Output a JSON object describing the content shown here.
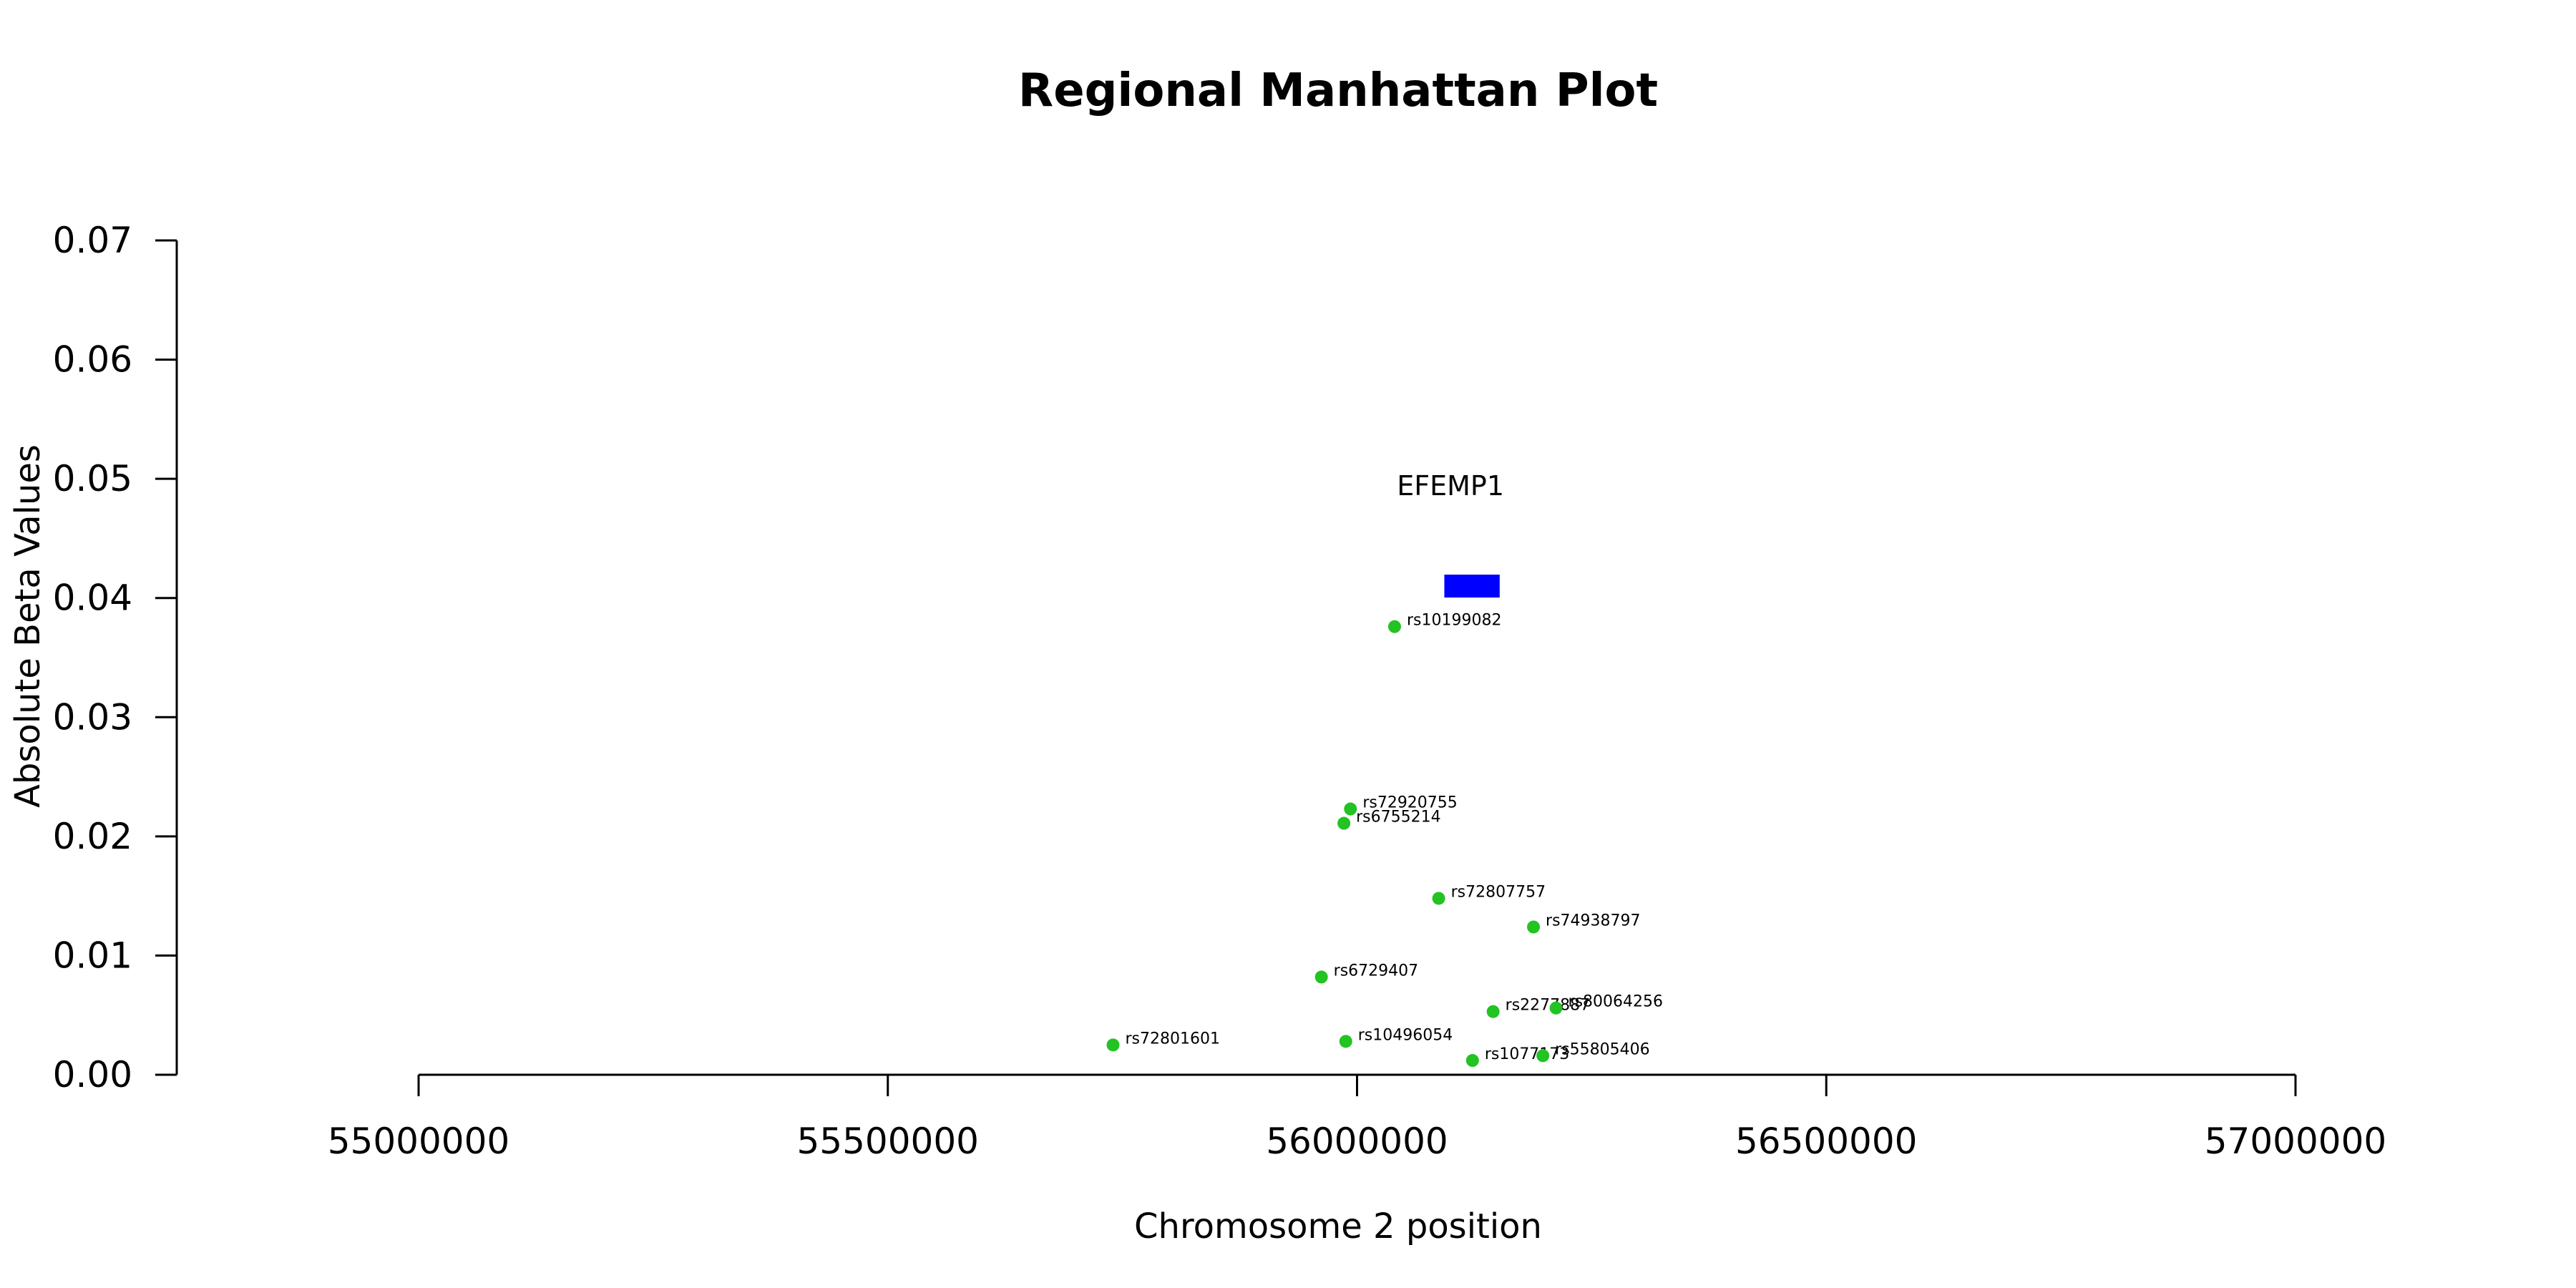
{
  "chart_data": {
    "type": "scatter",
    "title": "Regional Manhattan Plot",
    "xlabel": "Chromosome 2 position",
    "ylabel": "Absolute Beta Values",
    "xlim": [
      55000000,
      57000000
    ],
    "ylim": [
      0,
      0.07
    ],
    "x_ticks": [
      55000000,
      55500000,
      56000000,
      56500000,
      57000000
    ],
    "y_ticks": [
      "0.00",
      "0.01",
      "0.02",
      "0.03",
      "0.04",
      "0.05",
      "0.06",
      "0.07"
    ],
    "grid": false,
    "point_color": "#22c322",
    "gene_color": "#0000ff",
    "gene": {
      "name": "EFEMP1",
      "start": 56093000,
      "end": 56152000,
      "y": 0.041
    },
    "points": [
      {
        "label": "rs10199082",
        "x": 56040000,
        "y": 0.0376
      },
      {
        "label": "rs72920755",
        "x": 55993000,
        "y": 0.0223
      },
      {
        "label": "rs6755214",
        "x": 55986000,
        "y": 0.0211
      },
      {
        "label": "rs72807757",
        "x": 56087000,
        "y": 0.0148
      },
      {
        "label": "rs74938797",
        "x": 56188000,
        "y": 0.0124
      },
      {
        "label": "rs6729407",
        "x": 55962000,
        "y": 0.0082
      },
      {
        "label": "rs2277887",
        "x": 56145000,
        "y": 0.0053
      },
      {
        "label": "rs80064256",
        "x": 56212000,
        "y": 0.0056
      },
      {
        "label": "rs72801601",
        "x": 55740000,
        "y": 0.0025
      },
      {
        "label": "rs10496054",
        "x": 55988000,
        "y": 0.0028
      },
      {
        "label": "rs1077173",
        "x": 56123000,
        "y": 0.0012
      },
      {
        "label": "rs55805406",
        "x": 56198000,
        "y": 0.0016
      }
    ]
  }
}
